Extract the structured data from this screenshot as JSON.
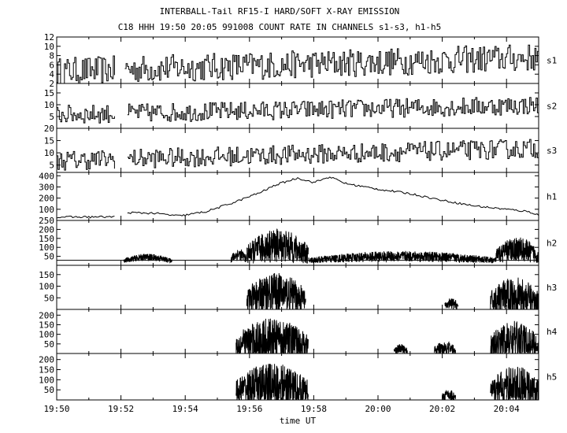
{
  "chart_data": {
    "type": "line",
    "title": "INTERBALL-Tail RF15-I HARD/SOFT X-RAY EMISSION",
    "subtitle": "C18 HHH 19:50 20:05 991008  COUNT RATE IN CHANNELS s1-s3, h1-h5",
    "xlabel": "time UT",
    "x_ticks": [
      "19:50",
      "19:52",
      "19:54",
      "19:56",
      "19:58",
      "20:00",
      "20:02",
      "20:04"
    ],
    "x_range": [
      "19:50",
      "20:05"
    ],
    "grid": false,
    "panels": [
      {
        "name": "s1",
        "ylim": [
          2,
          12
        ],
        "yticks": [
          "2",
          "4",
          "6",
          "8",
          "10",
          "12"
        ],
        "gaps": [
          [
            "19:51:50",
            "19:52:05"
          ]
        ],
        "level_start": 4,
        "level_end": 7,
        "noise": 3,
        "spiky": false
      },
      {
        "name": "s2",
        "ylim": [
          0,
          19
        ],
        "yticks": [
          "5",
          "10",
          "15"
        ],
        "gaps": [
          [
            "19:51:50",
            "19:52:10"
          ]
        ],
        "level_start": 5,
        "level_end": 9,
        "noise": 4,
        "spiky": false
      },
      {
        "name": "s3",
        "ylim": [
          2,
          20
        ],
        "yticks": [
          "5",
          "10",
          "15",
          "20"
        ],
        "gaps": [
          [
            "19:51:50",
            "19:52:10"
          ]
        ],
        "level_start": 6,
        "level_end": 11,
        "noise": 4,
        "spiky": false
      },
      {
        "name": "h1",
        "ylim": [
          0,
          430
        ],
        "yticks": [
          "100",
          "200",
          "300",
          "400"
        ],
        "gaps": [
          [
            "19:51:50",
            "19:52:10"
          ]
        ],
        "profile": [
          [
            "19:50",
            30
          ],
          [
            "19:51:50",
            32
          ],
          [
            "19:52:10",
            70
          ],
          [
            "19:53",
            65
          ],
          [
            "19:53:50",
            40
          ],
          [
            "19:54:40",
            80
          ],
          [
            "19:55:30",
            160
          ],
          [
            "19:56:20",
            250
          ],
          [
            "19:56:50",
            320
          ],
          [
            "19:57:30",
            380
          ],
          [
            "19:58:00",
            340
          ],
          [
            "19:58:30",
            390
          ],
          [
            "19:59:00",
            330
          ],
          [
            "20:00:00",
            280
          ],
          [
            "20:01:00",
            240
          ],
          [
            "20:02:00",
            180
          ],
          [
            "20:03:00",
            130
          ],
          [
            "20:04:00",
            100
          ],
          [
            "20:04:40",
            80
          ],
          [
            "20:05",
            50
          ]
        ]
      },
      {
        "name": "h2",
        "ylim": [
          0,
          250
        ],
        "yticks": [
          "50",
          "100",
          "150",
          "200",
          "250"
        ],
        "base": 28,
        "bursts": [
          [
            "19:52:05",
            "19:53:35",
            45,
            20
          ],
          [
            "19:55:25",
            "19:55:55",
            60,
            35
          ],
          [
            "19:55:55",
            "19:57:50",
            110,
            95
          ],
          [
            "19:57:50",
            "20:03:40",
            50,
            30
          ],
          [
            "20:03:40",
            "20:05",
            90,
            70
          ]
        ]
      },
      {
        "name": "h3",
        "ylim": [
          0,
          190
        ],
        "yticks": [
          "50",
          "100",
          "150"
        ],
        "bursts": [
          [
            "19:55:55",
            "19:57:45",
            70,
            90
          ],
          [
            "20:02:05",
            "20:02:30",
            25,
            25
          ],
          [
            "20:03:30",
            "20:05",
            60,
            80
          ]
        ]
      },
      {
        "name": "h4",
        "ylim": [
          0,
          230
        ],
        "yticks": [
          "50",
          "100",
          "150",
          "200"
        ],
        "bursts": [
          [
            "19:55:35",
            "19:57:50",
            75,
            110
          ],
          [
            "20:00:30",
            "20:00:55",
            25,
            25
          ],
          [
            "20:01:45",
            "20:02:25",
            30,
            35
          ],
          [
            "20:03:30",
            "20:05",
            70,
            100
          ]
        ]
      },
      {
        "name": "h5",
        "ylim": [
          0,
          230
        ],
        "yticks": [
          "50",
          "100",
          "150",
          "200"
        ],
        "bursts": [
          [
            "19:55:35",
            "19:57:50",
            75,
            110
          ],
          [
            "20:02:00",
            "20:02:25",
            25,
            30
          ],
          [
            "20:03:30",
            "20:05",
            70,
            100
          ]
        ]
      }
    ]
  }
}
